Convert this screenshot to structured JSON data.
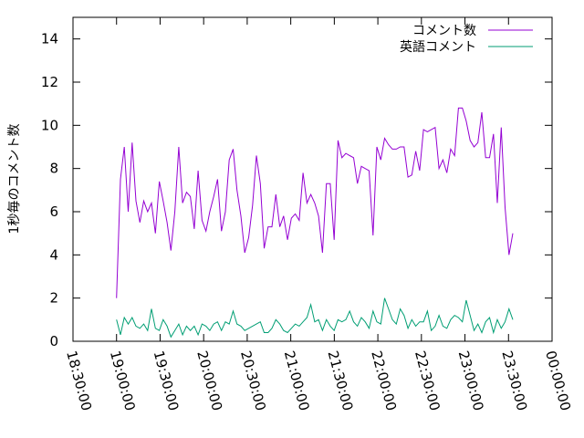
{
  "chart_data": {
    "type": "line",
    "title": "",
    "xlabel": "",
    "ylabel": "1秒毎のコメント数",
    "xlim_minutes": [
      1110,
      1440
    ],
    "x_tick_labels": [
      "18:30:00",
      "19:00:00",
      "19:30:00",
      "20:00:00",
      "20:30:00",
      "21:00:00",
      "21:30:00",
      "22:00:00",
      "22:30:00",
      "23:00:00",
      "23:30:00",
      "00:00:00"
    ],
    "ylim": [
      0,
      15
    ],
    "y_ticks": [
      0,
      2,
      4,
      6,
      8,
      10,
      12,
      14
    ],
    "grid": false,
    "legend_position": "top-right",
    "x_start": "19:00:00",
    "x_end": "23:33:00",
    "series": [
      {
        "name": "コメント数",
        "color": "#9400d3",
        "values": [
          2.0,
          7.5,
          9.0,
          6.0,
          9.2,
          6.5,
          5.5,
          6.5,
          6.0,
          6.4,
          5.0,
          7.4,
          6.5,
          5.5,
          4.2,
          6.0,
          9.0,
          6.4,
          6.9,
          6.7,
          5.2,
          7.9,
          5.6,
          5.1,
          6.0,
          6.7,
          7.5,
          5.1,
          6.0,
          8.4,
          8.9,
          7.0,
          5.8,
          4.1,
          4.8,
          6.3,
          8.6,
          7.3,
          4.3,
          5.3,
          5.3,
          6.8,
          5.3,
          5.8,
          4.7,
          5.7,
          5.9,
          5.6,
          7.8,
          6.4,
          6.8,
          6.4,
          5.8,
          4.1,
          7.3,
          7.3,
          4.7,
          9.3,
          8.5,
          8.7,
          8.6,
          8.5,
          7.3,
          8.1,
          8.0,
          7.9,
          4.9,
          9.0,
          8.4,
          9.4,
          9.1,
          8.9,
          8.9,
          9.0,
          9.0,
          7.6,
          7.7,
          8.8,
          7.9,
          9.8,
          9.7,
          9.8,
          9.9,
          8.0,
          8.4,
          7.8,
          8.9,
          8.6,
          10.8,
          10.8,
          10.2,
          9.3,
          9.0,
          9.2,
          10.6,
          8.5,
          8.5,
          9.6,
          6.4,
          9.9,
          6.2,
          4.0,
          5.0
        ]
      },
      {
        "name": "英語コメント",
        "color": "#009e73",
        "values": [
          1.0,
          0.3,
          1.1,
          0.8,
          1.1,
          0.7,
          0.6,
          0.8,
          0.5,
          1.5,
          0.6,
          0.5,
          1.0,
          0.7,
          0.2,
          0.5,
          0.8,
          0.3,
          0.7,
          0.5,
          0.7,
          0.3,
          0.8,
          0.7,
          0.5,
          0.8,
          0.9,
          0.5,
          0.9,
          0.8,
          1.4,
          0.8,
          0.7,
          0.5,
          0.6,
          0.7,
          0.8,
          0.9,
          0.4,
          0.4,
          0.6,
          1.0,
          0.8,
          0.5,
          0.4,
          0.6,
          0.8,
          0.7,
          0.9,
          1.1,
          1.7,
          0.9,
          1.0,
          0.5,
          1.0,
          0.7,
          0.5,
          1.0,
          0.9,
          1.0,
          1.4,
          0.9,
          0.7,
          1.1,
          0.9,
          0.6,
          1.4,
          0.9,
          0.8,
          2.0,
          1.5,
          1.0,
          0.8,
          1.5,
          1.2,
          0.6,
          1.0,
          0.7,
          0.9,
          0.9,
          1.4,
          0.5,
          0.7,
          1.2,
          0.7,
          0.6,
          1.0,
          1.2,
          1.1,
          0.9,
          1.9,
          1.2,
          0.5,
          0.8,
          0.4,
          0.9,
          1.1,
          0.4,
          1.0,
          0.6,
          0.9,
          1.5,
          1.0
        ]
      }
    ]
  }
}
